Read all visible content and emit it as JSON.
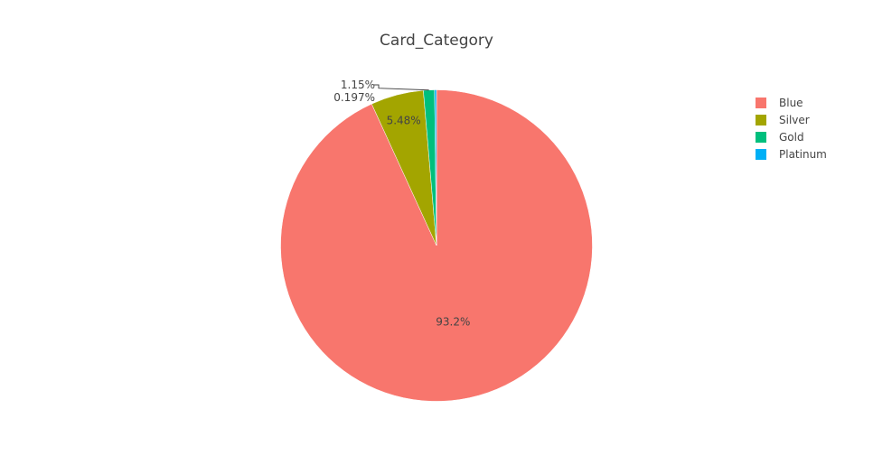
{
  "chart_data": {
    "type": "pie",
    "title": "Card_Category",
    "labels": [
      "Blue",
      "Silver",
      "Gold",
      "Platinum"
    ],
    "values": [
      93.2,
      5.48,
      1.15,
      0.197
    ],
    "text_labels": [
      "93.2%",
      "5.48%",
      "1.15%",
      "0.197%"
    ],
    "colors": [
      "#f8766d",
      "#a3a500",
      "#00bf7d",
      "#00b0f6"
    ],
    "direction": "clockwise",
    "legend_placement": "top-right"
  }
}
